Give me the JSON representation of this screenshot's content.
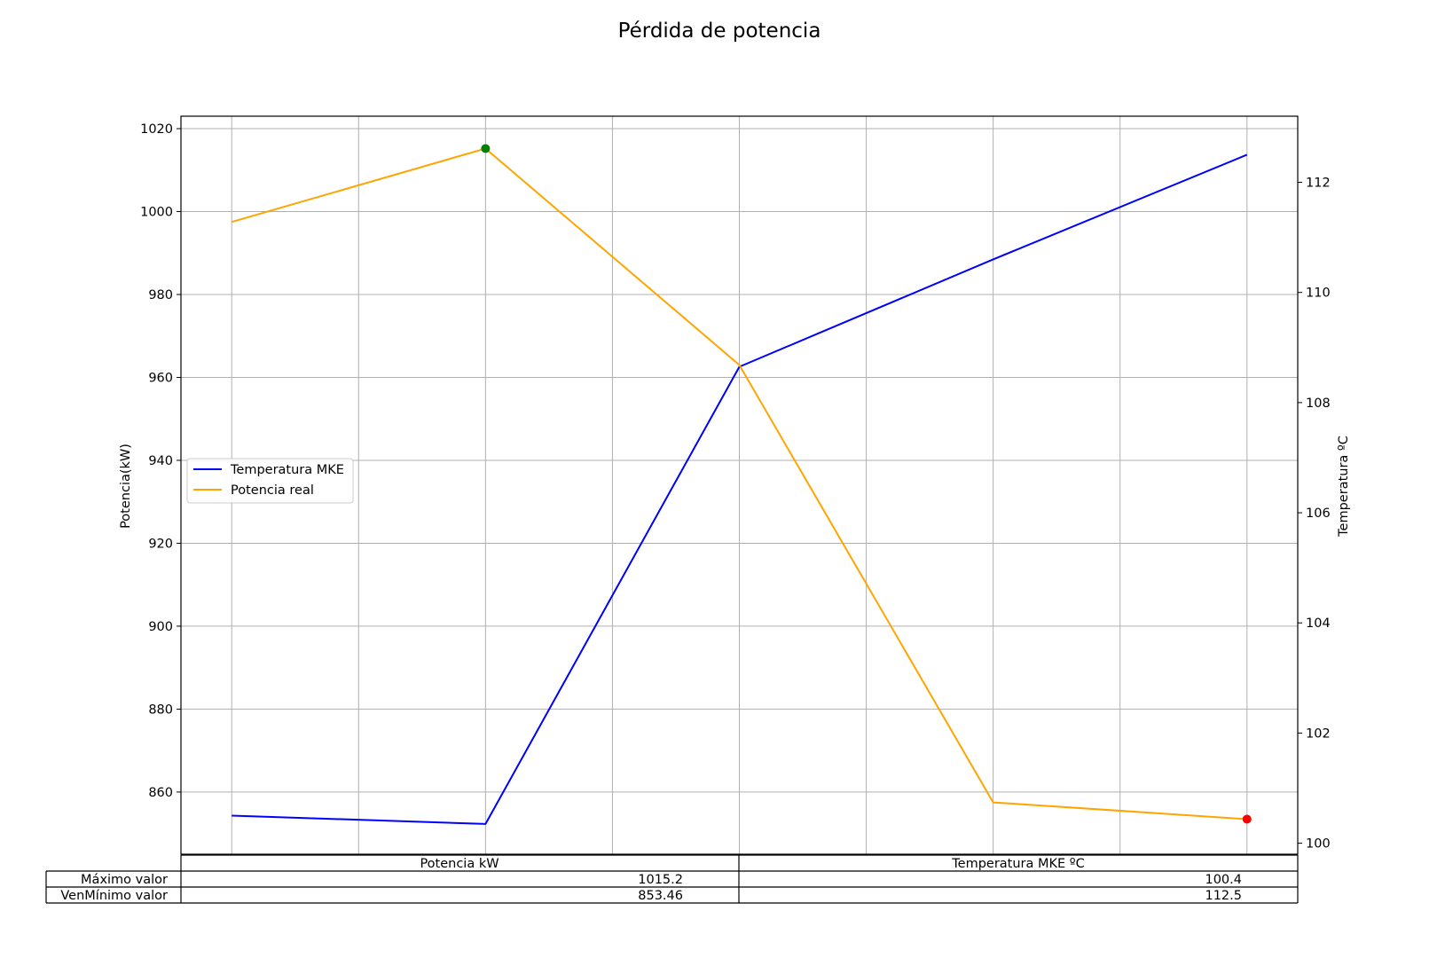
{
  "chart_data": {
    "type": "line",
    "title": "Pérdida de potencia",
    "x": [
      0,
      1,
      2,
      3,
      4
    ],
    "xlim": [
      -0.2,
      4.2
    ],
    "xgrid": [
      0,
      0.5,
      1,
      1.5,
      2,
      2.5,
      3,
      3.5,
      4
    ],
    "ylabel_left": "Potencia(kW)",
    "ylabel_right": "Temperatura ºC",
    "ylim_left": [
      845,
      1023
    ],
    "ylim_right": [
      99.8,
      113.2
    ],
    "yticks_left": [
      860,
      880,
      900,
      920,
      940,
      960,
      980,
      1000,
      1020
    ],
    "yticks_right": [
      100,
      102,
      104,
      106,
      108,
      110,
      112
    ],
    "grid": true,
    "legend_position": "center-left",
    "series": [
      {
        "name": "Temperatura MKE",
        "axis": "right",
        "color": "#0000ff",
        "values": [
          100.5,
          100.35,
          108.65,
          110.6,
          112.5
        ]
      },
      {
        "name": "Potencia real",
        "axis": "left",
        "color": "#ffa500",
        "values": [
          997.5,
          1015.2,
          963.0,
          857.5,
          853.46
        ]
      }
    ],
    "markers": [
      {
        "series": "Potencia real",
        "x": 1,
        "y": 1015.2,
        "color": "#008000"
      },
      {
        "series": "Potencia real",
        "x": 4,
        "y": 853.46,
        "color": "#ff0000"
      }
    ]
  },
  "table": {
    "columns": [
      "Potencia kW",
      "Temperatura MKE ºC"
    ],
    "rows": [
      {
        "label": "Máximo valor",
        "values": [
          "1015.2",
          "100.4"
        ]
      },
      {
        "label": "VenMínimo valor",
        "values": [
          "853.46",
          "112.5"
        ]
      }
    ]
  }
}
